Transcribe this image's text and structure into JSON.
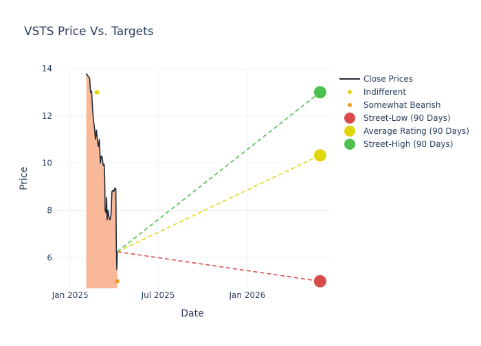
{
  "chart_data": {
    "type": "line",
    "title": "VSTS Price Vs. Targets",
    "xlabel": "Date",
    "ylabel": "Price",
    "xlim": [
      "2024-12-02",
      "2026-06-20"
    ],
    "ylim": [
      4.7,
      14.0
    ],
    "x_ticks": [
      {
        "date": "2025-01-01",
        "label": "Jan 2025"
      },
      {
        "date": "2025-07-01",
        "label": "Jul 2025"
      },
      {
        "date": "2026-01-01",
        "label": "Jan 2026"
      }
    ],
    "y_ticks": [
      6,
      8,
      10,
      12,
      14
    ],
    "grid": true,
    "legend_position": "right",
    "close_prices": {
      "name": "Close Prices",
      "color": "#1f2a36",
      "fill_color": "#f9b998",
      "points": [
        [
          "2025-02-03",
          13.8
        ],
        [
          "2025-02-06",
          13.7
        ],
        [
          "2025-02-10",
          13.6
        ],
        [
          "2025-02-12",
          13.0
        ],
        [
          "2025-02-14",
          13.05
        ],
        [
          "2025-02-16",
          12.3
        ],
        [
          "2025-02-18",
          11.8
        ],
        [
          "2025-02-20",
          11.5
        ],
        [
          "2025-02-22",
          11.0
        ],
        [
          "2025-02-24",
          11.4
        ],
        [
          "2025-02-26",
          11.0
        ],
        [
          "2025-02-28",
          10.7
        ],
        [
          "2025-03-02",
          11.0
        ],
        [
          "2025-03-04",
          10.0
        ],
        [
          "2025-03-06",
          10.3
        ],
        [
          "2025-03-08",
          10.25
        ],
        [
          "2025-03-10",
          9.9
        ],
        [
          "2025-03-12",
          9.95
        ],
        [
          "2025-03-13",
          9.5
        ],
        [
          "2025-03-14",
          8.0
        ],
        [
          "2025-03-16",
          7.9
        ],
        [
          "2025-03-17",
          8.55
        ],
        [
          "2025-03-18",
          7.6
        ],
        [
          "2025-03-20",
          8.0
        ],
        [
          "2025-03-22",
          7.7
        ],
        [
          "2025-03-24",
          7.6
        ],
        [
          "2025-03-26",
          7.8
        ],
        [
          "2025-03-28",
          8.8
        ],
        [
          "2025-03-30",
          8.85
        ],
        [
          "2025-04-01",
          8.8
        ],
        [
          "2025-04-03",
          8.95
        ],
        [
          "2025-04-05",
          8.9
        ],
        [
          "2025-04-06",
          6.5
        ],
        [
          "2025-04-07",
          5.5
        ],
        [
          "2025-04-08",
          6.25
        ]
      ]
    },
    "ratings": [
      {
        "name": "Indifferent",
        "color": "#e0d60d",
        "points": [
          [
            "2025-02-24",
            13.0
          ],
          [
            "2025-02-26",
            13.0
          ]
        ]
      },
      {
        "name": "Somewhat Bearish",
        "color": "#e89a1d",
        "points": [
          [
            "2025-04-08",
            5.0
          ]
        ]
      }
    ],
    "targets": {
      "origin": [
        "2025-04-08",
        6.25
      ],
      "target_date": "2026-05-31",
      "series": [
        {
          "name": "Street-Low (90 Days)",
          "value": 5.0,
          "color": "#d94a4a"
        },
        {
          "name": "Average Rating (90 Days)",
          "value": 10.33,
          "color": "#e0d60d"
        },
        {
          "name": "Street-High (90 Days)",
          "value": 13.0,
          "color": "#4cbf4c"
        }
      ]
    }
  }
}
